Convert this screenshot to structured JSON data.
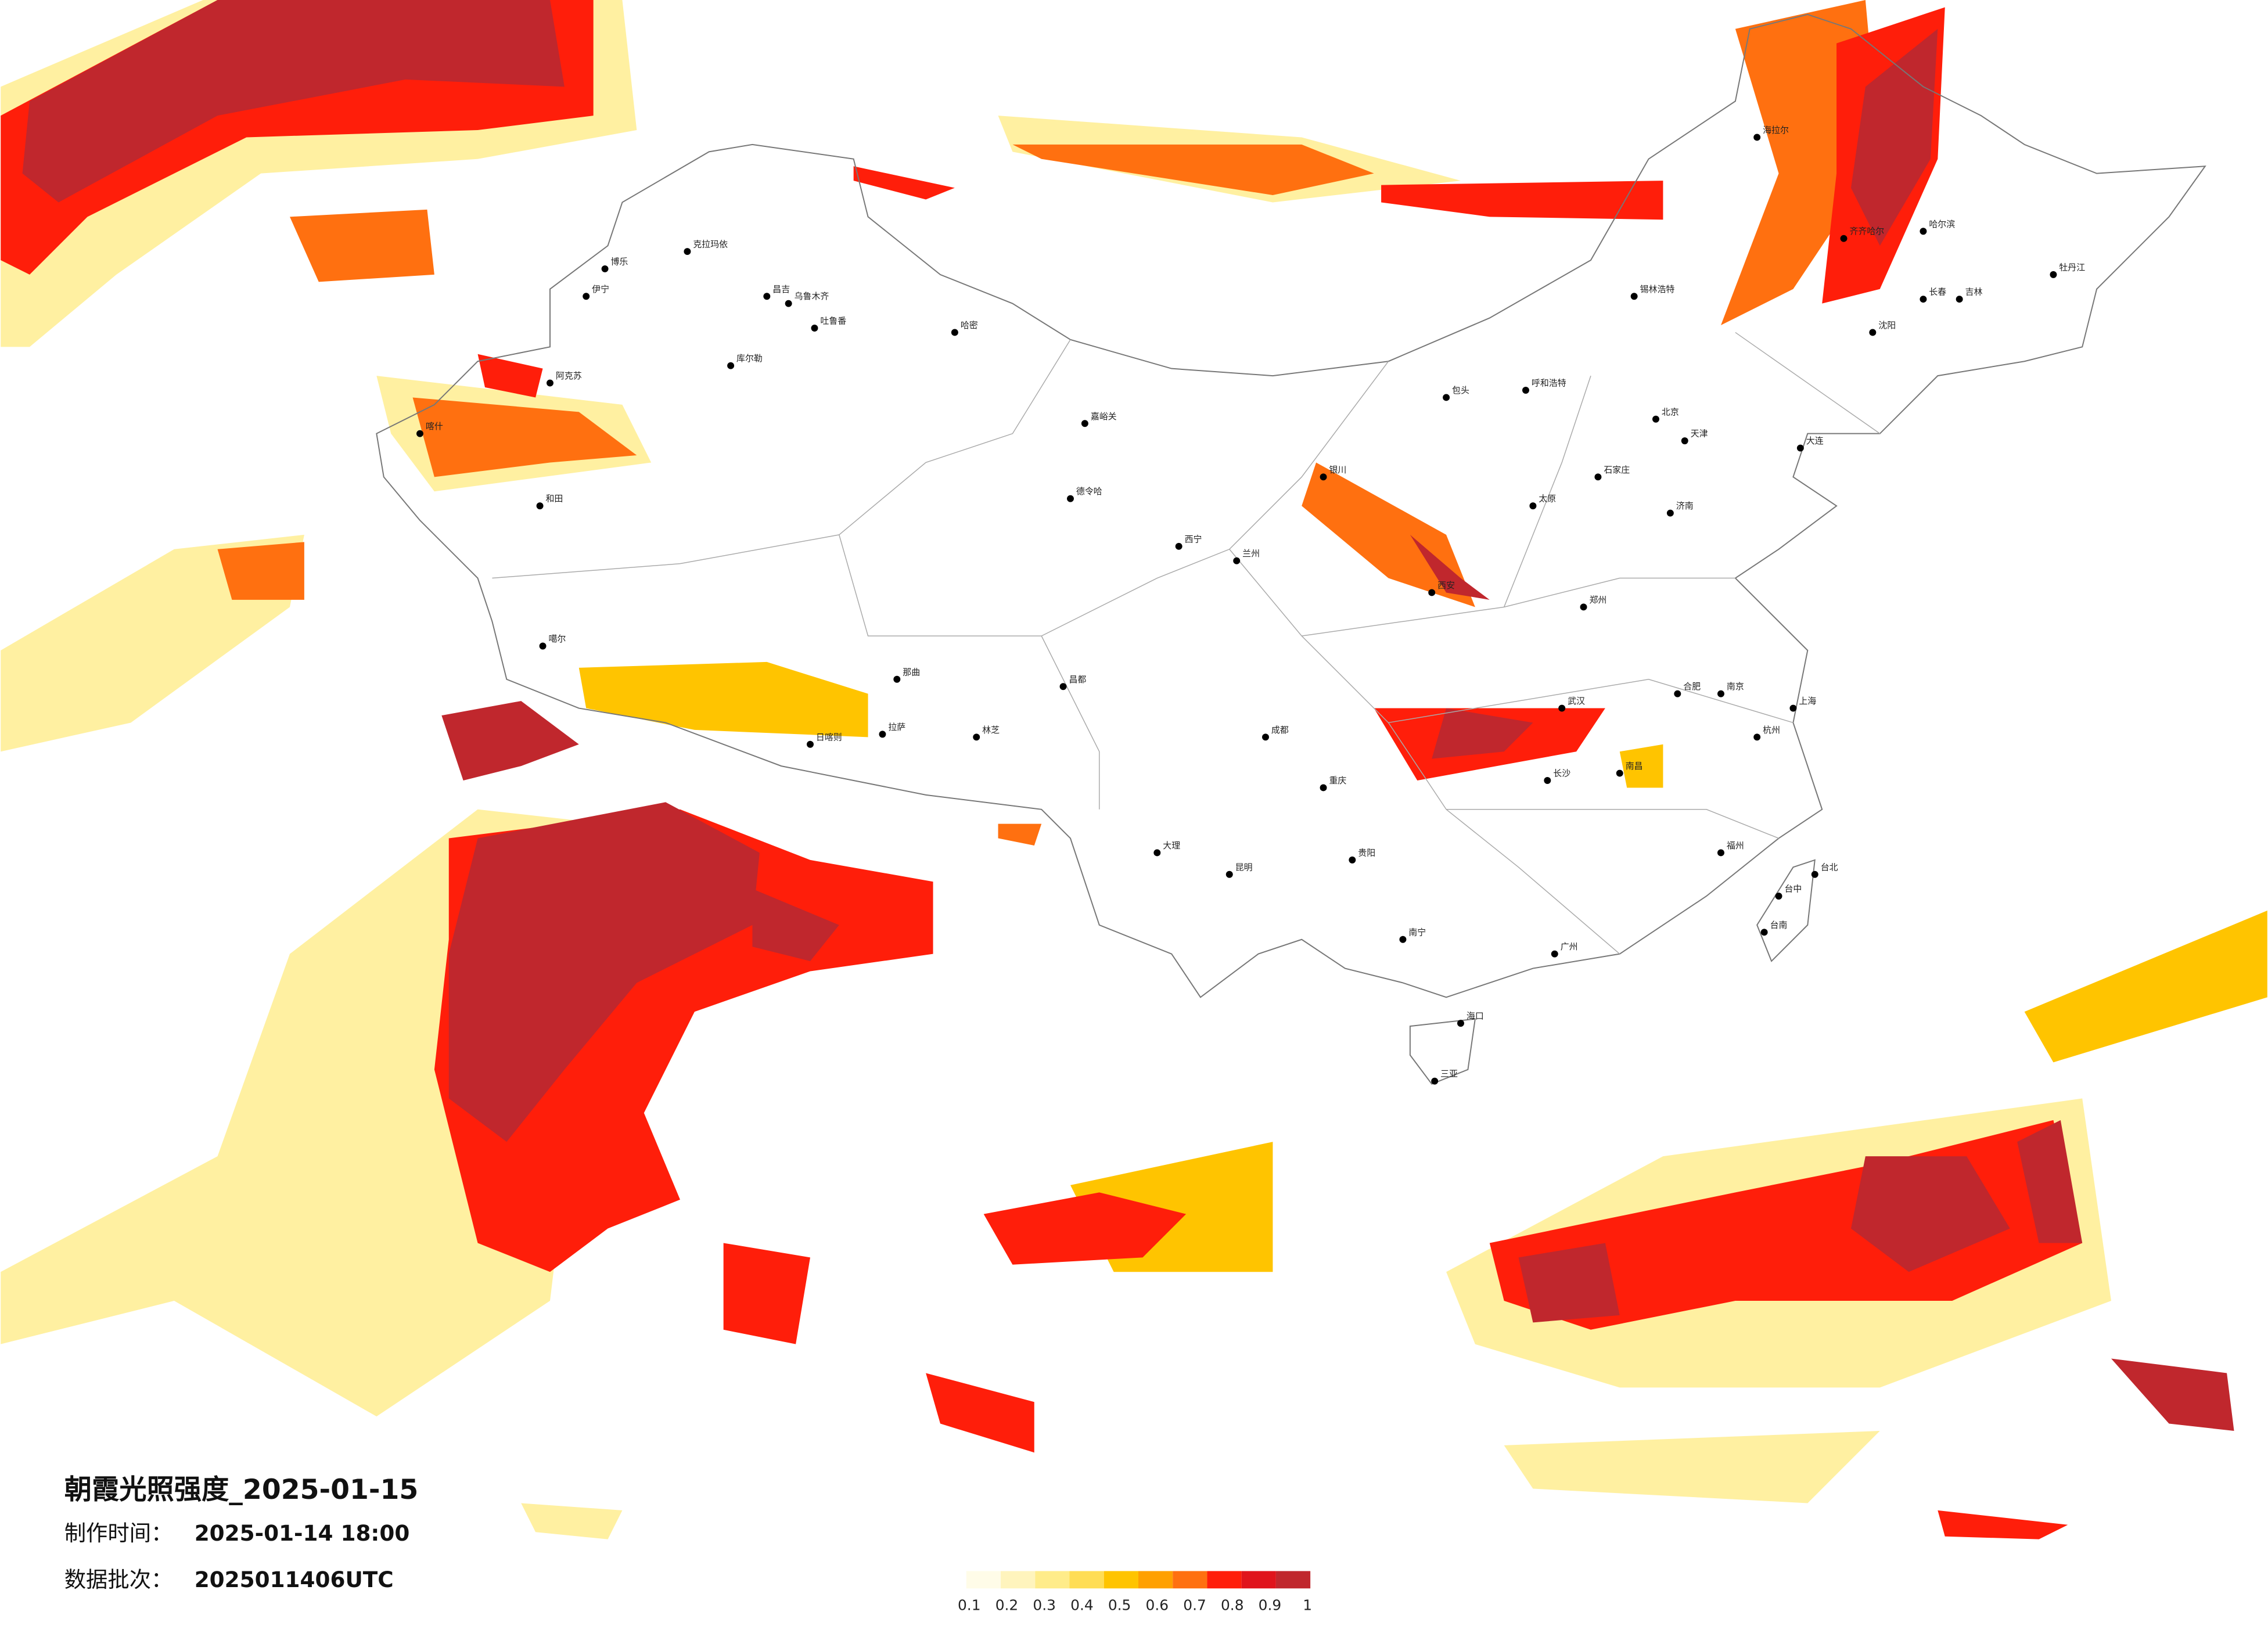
{
  "title": "朝霞光照强度_2025-01-15",
  "made_label": "制作时间：",
  "made_time": "2025-01-14 18:00",
  "batch_label": "数据批次：",
  "batch": "2025011406UTC",
  "legend": {
    "colors": [
      "#fffce8",
      "#fff4bd",
      "#ffec8a",
      "#ffdd55",
      "#ffc400",
      "#ffa000",
      "#ff7010",
      "#ff1e0a",
      "#e0141c",
      "#c0272d"
    ],
    "ticks": [
      0.1,
      0.2,
      0.3,
      0.4,
      0.5,
      0.6,
      0.7,
      0.8,
      0.9,
      1
    ]
  },
  "cities": [
    "克拉玛依",
    "昌吉",
    "乌鲁木齐",
    "吐鲁番",
    "哈密",
    "伊宁",
    "库尔勒",
    "阿克苏",
    "喀什",
    "和田",
    "博乐",
    "噶尔",
    "日喀则",
    "拉萨",
    "林芝",
    "那曲",
    "昌都",
    "德令哈",
    "嘉峪关",
    "西宁",
    "兰州",
    "银川",
    "呼和浩特",
    "包头",
    "海拉尔",
    "齐齐哈尔",
    "哈尔滨",
    "长春",
    "吉林",
    "沈阳",
    "大连",
    "北京",
    "天津",
    "石家庄",
    "太原",
    "郑州",
    "济南",
    "西安",
    "成都",
    "重庆",
    "贵阳",
    "昆明",
    "南宁",
    "海口",
    "三亚",
    "广州",
    "福州",
    "台北",
    "台中",
    "台南",
    "杭州",
    "上海",
    "南京",
    "合肥",
    "武汉",
    "长沙",
    "南昌",
    "大理",
    "锡林浩特",
    "牡丹江"
  ]
}
